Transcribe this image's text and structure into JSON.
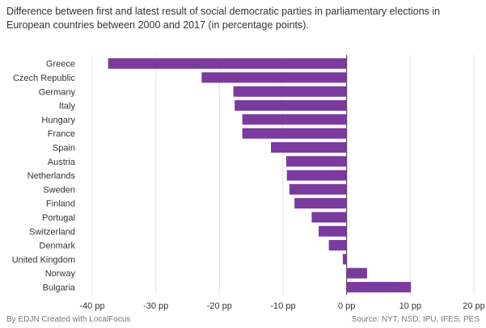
{
  "title": "Difference between first and latest result of social democratic parties in parliamentary elections in European countries between 2000 and 2017 (in percentage points).",
  "footer": {
    "credit": "By EDJN   Created with LocalFocus",
    "source": "Source: NYT, NSD, IPU, IFES, PES"
  },
  "colors": {
    "bar": "#7b3a9e",
    "grid": "#e3e3e3",
    "axis": "#333333"
  },
  "chart_data": {
    "type": "bar",
    "orientation": "horizontal",
    "categories": [
      "Greece",
      "Czech Republic",
      "Germany",
      "Italy",
      "Hungary",
      "France",
      "Spain",
      "Austria",
      "Netherlands",
      "Sweden",
      "Finland",
      "Portugal",
      "Switzerland",
      "Denmark",
      "United Kingdom",
      "Norway",
      "Bulgaria"
    ],
    "values": [
      -37.5,
      -22.8,
      -17.8,
      -17.6,
      -16.4,
      -16.4,
      -11.9,
      -9.5,
      -9.4,
      -9.0,
      -8.2,
      -5.5,
      -4.4,
      -2.8,
      -0.6,
      3.2,
      10.1
    ],
    "xlim": [
      -40,
      20
    ],
    "xticks": [
      -40,
      -30,
      -20,
      -10,
      0,
      10,
      20
    ],
    "tick_labels": [
      "-40 pp",
      "-30 pp",
      "-20 pp",
      "-10 pp",
      "0 pp",
      "10 pp",
      "20 pp"
    ],
    "grid": true,
    "legend": "none"
  }
}
